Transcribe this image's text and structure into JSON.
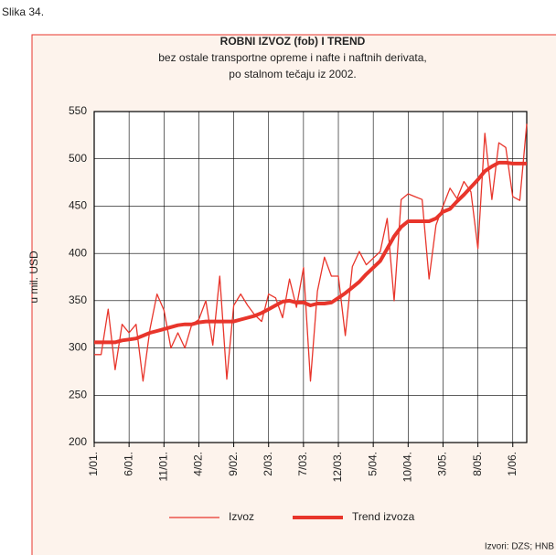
{
  "figure_label": "Slika 34.",
  "chart_data": {
    "type": "line",
    "title": "ROBNI IZVOZ (fob) I TREND",
    "subtitle": [
      "bez ostale transportne opreme i nafte i naftnih derivata,",
      "po stalnom tečaju iz 2002."
    ],
    "y_label": "u mil. USD",
    "source": "Izvori: DZS; HNB",
    "categories": [
      "1/01.",
      null,
      null,
      null,
      null,
      "6/01.",
      null,
      null,
      null,
      null,
      "11/01.",
      null,
      null,
      null,
      null,
      "4/02.",
      null,
      null,
      null,
      null,
      "9/02.",
      null,
      null,
      null,
      null,
      "2/03.",
      null,
      null,
      null,
      null,
      "7/03.",
      null,
      null,
      null,
      null,
      "12/03.",
      null,
      null,
      null,
      null,
      "5/04.",
      null,
      null,
      null,
      null,
      "10/04.",
      null,
      null,
      null,
      null,
      "3/05.",
      null,
      null,
      null,
      null,
      "8/05.",
      null,
      null,
      null,
      null,
      "1/06.",
      null,
      null
    ],
    "series": [
      {
        "name": "Izvoz",
        "color": "#e8352b",
        "width": 1.3,
        "values": [
          293,
          293,
          341,
          277,
          325,
          316,
          325,
          265,
          320,
          357,
          340,
          300,
          316,
          300,
          325,
          330,
          350,
          303,
          376,
          267,
          345,
          357,
          345,
          335,
          328,
          357,
          353,
          332,
          373,
          343,
          385,
          265,
          360,
          396,
          376,
          376,
          313,
          386,
          402,
          388,
          395,
          402,
          437,
          350,
          457,
          463,
          460,
          457,
          373,
          430,
          450,
          469,
          458,
          476,
          465,
          405,
          527,
          457,
          517,
          512,
          460,
          456,
          537
        ]
      },
      {
        "name": "Trend izvoza",
        "color": "#e8352b",
        "width": 4,
        "values": [
          306,
          306,
          306,
          306,
          308,
          309,
          310,
          313,
          316,
          318,
          320,
          322,
          324,
          325,
          325,
          327,
          328,
          328,
          328,
          328,
          328,
          330,
          332,
          334,
          337,
          341,
          345,
          349,
          350,
          348,
          348,
          345,
          347,
          347,
          348,
          353,
          358,
          364,
          370,
          378,
          385,
          392,
          405,
          418,
          428,
          434,
          434,
          434,
          434,
          437,
          444,
          447,
          455,
          462,
          470,
          478,
          487,
          492,
          496,
          496,
          495,
          495,
          495
        ]
      }
    ],
    "ylim": [
      200,
      550
    ],
    "yticks": [
      200,
      250,
      300,
      350,
      400,
      450,
      500,
      550
    ],
    "grid": true
  }
}
